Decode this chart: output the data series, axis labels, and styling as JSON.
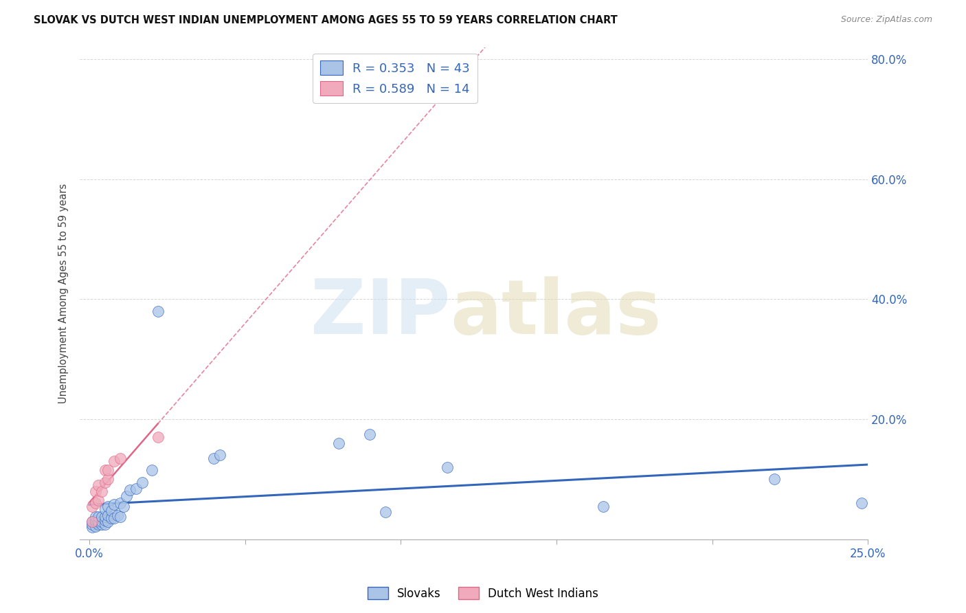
{
  "title": "SLOVAK VS DUTCH WEST INDIAN UNEMPLOYMENT AMONG AGES 55 TO 59 YEARS CORRELATION CHART",
  "source": "Source: ZipAtlas.com",
  "ylabel": "Unemployment Among Ages 55 to 59 years",
  "xlim": [
    0.0,
    0.25
  ],
  "ylim": [
    0.0,
    0.82
  ],
  "background_color": "#ffffff",
  "slovak_color": "#aac4e8",
  "dutch_color": "#f0aabb",
  "slovak_line_color": "#3366bb",
  "dutch_line_color": "#e06688",
  "legend_text_color": "#3366bb",
  "legend_R_slovak": "R = 0.353",
  "legend_N_slovak": "N = 43",
  "legend_R_dutch": "R = 0.589",
  "legend_N_dutch": "N = 14",
  "grid_color": "#cccccc",
  "slovak_x": [
    0.001,
    0.001,
    0.001,
    0.002,
    0.002,
    0.002,
    0.002,
    0.003,
    0.003,
    0.003,
    0.004,
    0.004,
    0.004,
    0.005,
    0.005,
    0.005,
    0.005,
    0.006,
    0.006,
    0.006,
    0.007,
    0.007,
    0.008,
    0.008,
    0.009,
    0.01,
    0.01,
    0.011,
    0.012,
    0.013,
    0.015,
    0.017,
    0.02,
    0.022,
    0.04,
    0.042,
    0.08,
    0.09,
    0.095,
    0.115,
    0.165,
    0.22,
    0.248
  ],
  "slovak_y": [
    0.02,
    0.025,
    0.03,
    0.022,
    0.028,
    0.032,
    0.038,
    0.025,
    0.03,
    0.038,
    0.025,
    0.03,
    0.038,
    0.025,
    0.032,
    0.038,
    0.05,
    0.03,
    0.04,
    0.055,
    0.035,
    0.048,
    0.035,
    0.058,
    0.04,
    0.038,
    0.06,
    0.055,
    0.072,
    0.082,
    0.085,
    0.095,
    0.115,
    0.38,
    0.135,
    0.14,
    0.16,
    0.175,
    0.045,
    0.12,
    0.055,
    0.1,
    0.06
  ],
  "dutch_x": [
    0.001,
    0.001,
    0.002,
    0.002,
    0.003,
    0.003,
    0.004,
    0.005,
    0.005,
    0.006,
    0.006,
    0.008,
    0.01,
    0.022
  ],
  "dutch_y": [
    0.03,
    0.055,
    0.06,
    0.08,
    0.065,
    0.09,
    0.08,
    0.095,
    0.115,
    0.1,
    0.115,
    0.13,
    0.135,
    0.17
  ]
}
